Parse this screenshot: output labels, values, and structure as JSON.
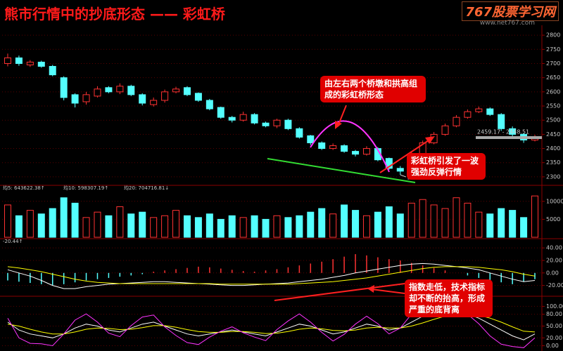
{
  "header": {
    "title": "熊市行情中的抄底形态 —— 彩虹桥",
    "site_name": "767股票学习网",
    "site_url": "www.net767.com"
  },
  "chart_data": [
    {
      "type": "candlestick",
      "open": [
        2700,
        2720,
        2695,
        2705,
        2690,
        2650,
        2590,
        2565,
        2585,
        2615,
        2600,
        2620,
        2590,
        2555,
        2570,
        2600,
        2615,
        2595,
        2570,
        2545,
        2510,
        2500,
        2520,
        2490,
        2480,
        2500,
        2470,
        2445,
        2420,
        2400,
        2410,
        2390,
        2380,
        2400,
        2365,
        2330,
        2325,
        2380,
        2420,
        2450,
        2480,
        2510,
        2530,
        2540,
        2520,
        2470,
        2450,
        2430
      ],
      "high": [
        2735,
        2728,
        2712,
        2710,
        2695,
        2655,
        2595,
        2600,
        2620,
        2620,
        2630,
        2625,
        2595,
        2580,
        2608,
        2618,
        2620,
        2598,
        2575,
        2548,
        2515,
        2530,
        2525,
        2495,
        2505,
        2505,
        2475,
        2448,
        2425,
        2418,
        2415,
        2395,
        2408,
        2405,
        2368,
        2338,
        2388,
        2428,
        2458,
        2488,
        2518,
        2538,
        2548,
        2545,
        2525,
        2478,
        2455,
        2448
      ],
      "low": [
        2690,
        2692,
        2688,
        2685,
        2655,
        2570,
        2545,
        2555,
        2580,
        2595,
        2592,
        2585,
        2552,
        2548,
        2562,
        2595,
        2585,
        2565,
        2535,
        2505,
        2492,
        2495,
        2485,
        2475,
        2472,
        2465,
        2435,
        2412,
        2395,
        2395,
        2385,
        2372,
        2375,
        2355,
        2325,
        2307.15,
        2318,
        2375,
        2415,
        2445,
        2475,
        2505,
        2525,
        2515,
        2462,
        2442,
        2420,
        2425
      ],
      "close": [
        2720,
        2700,
        2705,
        2690,
        2660,
        2580,
        2560,
        2590,
        2610,
        2600,
        2620,
        2590,
        2560,
        2570,
        2600,
        2610,
        2590,
        2570,
        2540,
        2510,
        2500,
        2520,
        2490,
        2480,
        2500,
        2470,
        2440,
        2420,
        2400,
        2410,
        2390,
        2380,
        2400,
        2360,
        2330,
        2320,
        2380,
        2420,
        2450,
        2480,
        2510,
        2530,
        2540,
        2520,
        2470,
        2450,
        2430,
        2440
      ],
      "up_color": "#ff3232",
      "down_color": "#54ffff",
      "ylim": [
        2275,
        2835
      ],
      "yticks": [
        2300,
        2350,
        2400,
        2450,
        2500,
        2550,
        2600,
        2650,
        2700,
        2750,
        2800
      ],
      "range_label": "2459.17 - 2448.51",
      "annotations": [
        "由左右两个桥墩和拱高组成的彩虹桥形态",
        "彩虹桥引发了一波强劲反弹行情"
      ]
    },
    {
      "type": "bar",
      "legend": [
        {
          "label": "均5: 643622.38↑",
          "color": "#ffffff"
        },
        {
          "label": "均10: 598307.19↑",
          "color": "#ff44ff"
        },
        {
          "label": "均20: 704716.81↓",
          "color": "#44ff44"
        }
      ],
      "values": [
        9000,
        6000,
        7500,
        6500,
        8000,
        11000,
        9500,
        5500,
        7000,
        6000,
        8500,
        6500,
        7000,
        5500,
        6000,
        7500,
        6000,
        5500,
        6500,
        5000,
        6000,
        5500,
        6000,
        5000,
        6000,
        5500,
        6000,
        7000,
        8000,
        6500,
        9000,
        7500,
        6000,
        7000,
        8500,
        6500,
        9500,
        10500,
        9000,
        8000,
        11000,
        9500,
        7000,
        6500,
        8000,
        7500,
        5500,
        11500
      ],
      "ylim": [
        0,
        12500
      ],
      "yticks": [
        5000,
        10000
      ]
    },
    {
      "type": "macd",
      "label": "-20.44↑",
      "values": [
        -12,
        -14,
        -16,
        -18,
        -20,
        -18,
        -15,
        -12,
        -10,
        -8,
        -6,
        -4,
        -2,
        2,
        4,
        6,
        8,
        10,
        9,
        7,
        5,
        3,
        2,
        4,
        6,
        9,
        12,
        15,
        18,
        22,
        26,
        30,
        28,
        25,
        22,
        20,
        16,
        12,
        8,
        4,
        0,
        -4,
        -8,
        -12,
        -15,
        -18,
        -14,
        -10
      ],
      "series": [
        {
          "color": "#ffffff",
          "values": [
            5,
            0,
            -5,
            -12,
            -20,
            -25,
            -25,
            -22,
            -20,
            -18,
            -17,
            -16,
            -15,
            -14,
            -14,
            -15,
            -16,
            -17,
            -18,
            -19,
            -20,
            -20,
            -19,
            -18,
            -17,
            -16,
            -14,
            -12,
            -10,
            -7,
            -4,
            0,
            3,
            6,
            9,
            12,
            14,
            15,
            14,
            12,
            10,
            8,
            5,
            0,
            -5,
            -10,
            -14,
            -12
          ]
        },
        {
          "color": "#ffff00",
          "values": [
            10,
            8,
            5,
            2,
            -2,
            -6,
            -10,
            -13,
            -15,
            -16,
            -17,
            -17,
            -17,
            -17,
            -17,
            -17,
            -17,
            -17,
            -17,
            -18,
            -18,
            -18,
            -18,
            -18,
            -18,
            -18,
            -17,
            -16,
            -15,
            -14,
            -12,
            -10,
            -8,
            -5,
            -2,
            1,
            4,
            7,
            9,
            10,
            10,
            10,
            9,
            7,
            5,
            2,
            -2,
            -5
          ]
        }
      ],
      "ylim": [
        -35,
        48
      ],
      "yticks": [
        {
          "value": 40,
          "label": "40.00"
        },
        {
          "value": 20,
          "label": "20.00"
        },
        {
          "value": 0,
          "label": "0.00"
        },
        {
          "value": -20,
          "label": "-20.00"
        }
      ],
      "annotation": "指数走低，技术指标却不断的抬高，形成严重的底背离"
    },
    {
      "type": "line",
      "series": [
        {
          "color": "#ffffff",
          "values": [
            60,
            40,
            30,
            25,
            20,
            30,
            45,
            55,
            50,
            40,
            35,
            45,
            55,
            60,
            50,
            40,
            30,
            25,
            30,
            35,
            40,
            35,
            30,
            25,
            35,
            45,
            55,
            50,
            40,
            30,
            35,
            45,
            55,
            50,
            40,
            45,
            60,
            75,
            85,
            90,
            88,
            80,
            70,
            55,
            40,
            25,
            15,
            30
          ]
        },
        {
          "color": "#ffff00",
          "values": [
            55,
            50,
            42,
            35,
            30,
            30,
            35,
            42,
            45,
            44,
            41,
            42,
            46,
            51,
            51,
            47,
            41,
            36,
            34,
            34,
            36,
            36,
            34,
            31,
            32,
            36,
            42,
            45,
            43,
            39,
            38,
            40,
            45,
            47,
            45,
            45,
            50,
            58,
            67,
            75,
            79,
            80,
            77,
            70,
            60,
            48,
            37,
            35
          ]
        },
        {
          "color": "#ff33ff",
          "values": [
            70,
            20,
            6,
            5,
            0,
            30,
            65,
            81,
            60,
            32,
            23,
            51,
            73,
            78,
            48,
            26,
            8,
            3,
            22,
            37,
            48,
            33,
            22,
            13,
            41,
            63,
            81,
            60,
            34,
            12,
            29,
            55,
            75,
            56,
            30,
            45,
            80,
            105,
            110,
            110,
            106,
            80,
            56,
            25,
            4,
            -2,
            -5,
            20
          ]
        }
      ],
      "ylim": [
        -8,
        115
      ],
      "yticks": [
        {
          "value": 100,
          "label": "100.00"
        },
        {
          "value": 80,
          "label": "80.00"
        },
        {
          "value": 50,
          "label": "50.00"
        },
        {
          "value": 20,
          "label": "20.00"
        },
        {
          "value": 0,
          "label": "0.00"
        }
      ]
    }
  ]
}
